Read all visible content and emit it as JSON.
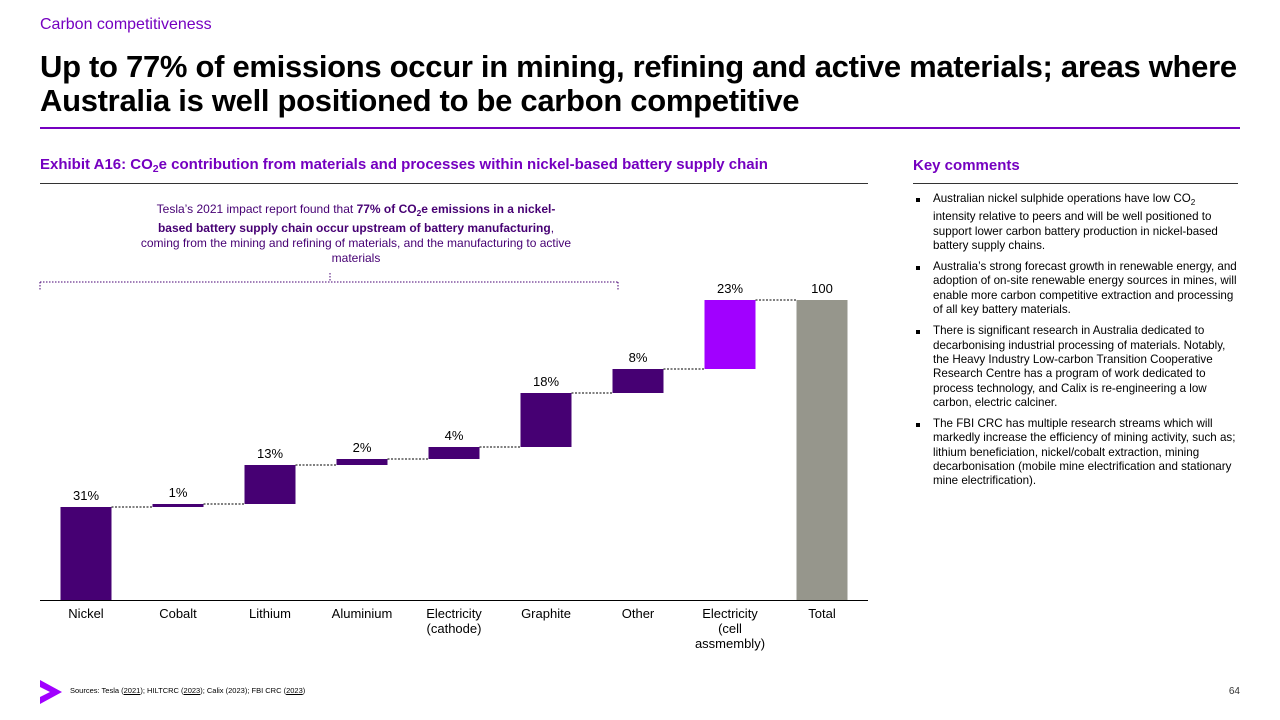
{
  "header": {
    "eyebrow": "Carbon competitiveness",
    "headline": "Up to 77% of emissions occur in mining, refining and active materials; areas where Australia is well positioned to be carbon competitive"
  },
  "exhibit": {
    "title_prefix": "Exhibit A16: CO",
    "title_sub": "2",
    "title_suffix": "e contribution from materials and processes within nickel-based battery supply chain"
  },
  "callout": {
    "part1": "Tesla’s 2021 impact report found that ",
    "bold1": "77% of CO",
    "bold_sub": "2",
    "bold2": "e emissions in a nickel-based battery supply chain occur upstream of battery manufacturing",
    "part2": ", coming from the mining and refining of materials, and the manufacturing to active materials"
  },
  "chart_data": {
    "type": "bar",
    "subtype": "waterfall",
    "categories": [
      "Nickel",
      "Cobalt",
      "Lithium",
      "Aluminium",
      "Electricity (cathode)",
      "Graphite",
      "Other",
      "Electricity (cell assmembly)",
      "Total"
    ],
    "category_lines": [
      [
        "Nickel"
      ],
      [
        "Cobalt"
      ],
      [
        "Lithium"
      ],
      [
        "Aluminium"
      ],
      [
        "Electricity",
        "(cathode)"
      ],
      [
        "Graphite"
      ],
      [
        "Other"
      ],
      [
        "Electricity",
        "(cell",
        "assmembly)"
      ],
      [
        "Total"
      ]
    ],
    "values": [
      31,
      1,
      13,
      2,
      4,
      18,
      8,
      23,
      100
    ],
    "data_labels": [
      "31%",
      "1%",
      "13%",
      "2%",
      "4%",
      "18%",
      "8%",
      "23%",
      "100"
    ],
    "total_index": 8,
    "ylim": [
      0,
      100
    ],
    "bracket_span": [
      "Nickel",
      "Graphite"
    ],
    "grid": false,
    "legend": "none",
    "colors": {
      "materials": "#460073",
      "cell_assembly": "#a100ff",
      "total": "#96968c",
      "text": "#000000"
    }
  },
  "key_comments": {
    "title": "Key comments",
    "items": [
      {
        "pre": "Australian nickel sulphide operations have low CO",
        "sub": "2",
        "post": " intensity relative to peers and will be well positioned to support lower carbon battery production in nickel-based battery supply chains."
      },
      {
        "pre": "Australia’s strong forecast growth in renewable energy, and adoption of on-site renewable energy sources in mines, will enable more carbon competitive extraction and processing of all key battery materials.",
        "sub": "",
        "post": ""
      },
      {
        "pre": "There is significant research in Australia dedicated to decarbonising industrial processing of materials. Notably, the Heavy Industry Low-carbon Transition Cooperative Research Centre has a program of work dedicated to process technology, and Calix is re-engineering a low carbon, electric calciner.",
        "sub": "",
        "post": ""
      },
      {
        "pre": "The FBI CRC has multiple research streams which will markedly increase the efficiency of mining activity, such as; lithium beneficiation, nickel/cobalt extraction, mining decarbonisation (mobile mine electrification and stationary mine electrification).",
        "sub": "",
        "post": ""
      }
    ]
  },
  "footer": {
    "sources_label": "Sources: Tesla (",
    "s1": "2021",
    "s_mid1": "); HILTCRC (",
    "s2": "2023",
    "s_mid2": "); Calix (2023); FBI CRC (",
    "s3": "2023",
    "s_end": ")",
    "page_number": "64",
    "brand_color": "#a100ff"
  }
}
